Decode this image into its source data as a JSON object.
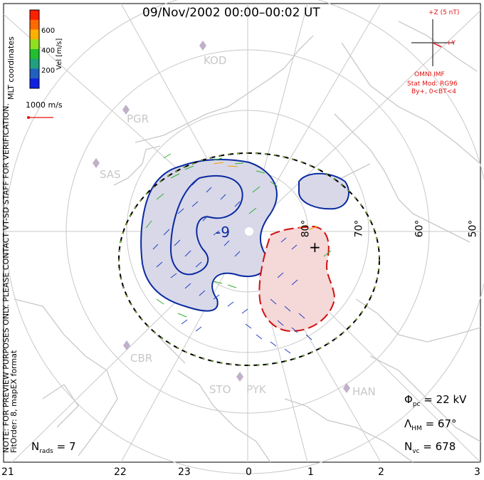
{
  "title": "09/Nov/2002 00:00–00:02 UT",
  "colorbar": {
    "label": "Vel [m/s]",
    "ticks": [
      "600",
      "400",
      "200"
    ],
    "colors": [
      "#ff2000",
      "#ff6a00",
      "#ffb000",
      "#90e020",
      "#20c030",
      "#20a080",
      "#2060c0",
      "#1020e0"
    ]
  },
  "left_notes": {
    "coords": "MLT coordinates",
    "preview": "NOTE: FOR PREVIEW PURPOSES ONLY. PLEASE CONTACT VT-SD STAFF FOR VERIFICATION.",
    "fitorder": "FitOrder: 8, mapEX format"
  },
  "scale_vector": "1000 m/s",
  "imf": {
    "z_label": "+Z (5 nT)",
    "y_label": "+Y",
    "source": "OMNI IMF",
    "model": "Stat Mod: RG96",
    "condition": "By+, 0<BT<4"
  },
  "stations": [
    "KOD",
    "PGR",
    "SAS",
    "CBR",
    "STO",
    "PYK",
    "HAN"
  ],
  "latitudes": [
    "80°",
    "70°",
    "60°",
    "50°"
  ],
  "contours": {
    "min_label": "-9",
    "max_label": "+"
  },
  "stats": {
    "phi_label": "Φ",
    "phi_sub": "pc",
    "phi_value": "= 22 kV",
    "lambda_label": "Λ",
    "lambda_sub": "HM",
    "lambda_value": "= 67°",
    "nvc_label": "N",
    "nvc_sub": "vc",
    "nvc_value": "= 678",
    "nrads_label": "N",
    "nrads_sub": "rads",
    "nrads_value": "= 7"
  },
  "mlt_ticks": [
    "21",
    "22",
    "23",
    "0",
    "1",
    "2",
    "3"
  ]
}
